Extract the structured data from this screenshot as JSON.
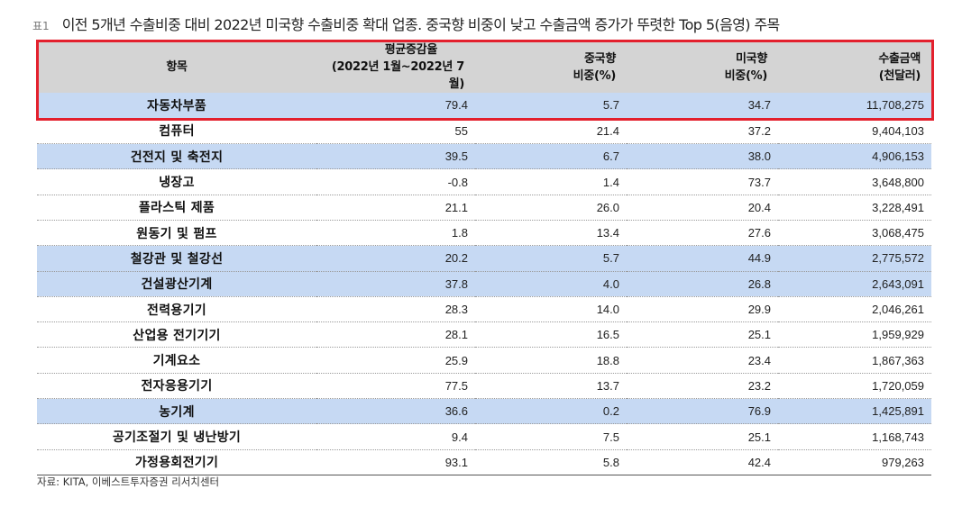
{
  "title": {
    "prefix": "표1",
    "text": "이전 5개년 수출비중 대비 2022년 미국향 수출비중 확대 업종. 중국향 비중이 낮고 수출금액 증가가 뚜렷한 Top 5(음영) 주목"
  },
  "headers": [
    {
      "line1": "항목",
      "line2": ""
    },
    {
      "line1": "평균증감율",
      "line2": "(2022년 1월~2022년 7월)"
    },
    {
      "line1": "중국향",
      "line2": "비중(%)"
    },
    {
      "line1": "미국향",
      "line2": "비중(%)"
    },
    {
      "line1": "수출금액",
      "line2": "(천달러)"
    }
  ],
  "rows": [
    {
      "item": "자동차부품",
      "growth": "79.4",
      "china": "5.7",
      "us": "34.7",
      "amount": "11,708,275",
      "shaded": true
    },
    {
      "item": "컴퓨터",
      "growth": "55",
      "china": "21.4",
      "us": "37.2",
      "amount": "9,404,103",
      "shaded": false
    },
    {
      "item": "건전지 및 축전지",
      "growth": "39.5",
      "china": "6.7",
      "us": "38.0",
      "amount": "4,906,153",
      "shaded": true
    },
    {
      "item": "냉장고",
      "growth": "-0.8",
      "china": "1.4",
      "us": "73.7",
      "amount": "3,648,800",
      "shaded": false
    },
    {
      "item": "플라스틱 제품",
      "growth": "21.1",
      "china": "26.0",
      "us": "20.4",
      "amount": "3,228,491",
      "shaded": false
    },
    {
      "item": "원동기 및 펌프",
      "growth": "1.8",
      "china": "13.4",
      "us": "27.6",
      "amount": "3,068,475",
      "shaded": false
    },
    {
      "item": "철강관 및 철강선",
      "growth": "20.2",
      "china": "5.7",
      "us": "44.9",
      "amount": "2,775,572",
      "shaded": true
    },
    {
      "item": "건설광산기계",
      "growth": "37.8",
      "china": "4.0",
      "us": "26.8",
      "amount": "2,643,091",
      "shaded": true
    },
    {
      "item": "전력용기기",
      "growth": "28.3",
      "china": "14.0",
      "us": "29.9",
      "amount": "2,046,261",
      "shaded": false
    },
    {
      "item": "산업용 전기기기",
      "growth": "28.1",
      "china": "16.5",
      "us": "25.1",
      "amount": "1,959,929",
      "shaded": false
    },
    {
      "item": "기계요소",
      "growth": "25.9",
      "china": "18.8",
      "us": "23.4",
      "amount": "1,867,363",
      "shaded": false
    },
    {
      "item": "전자응용기기",
      "growth": "77.5",
      "china": "13.7",
      "us": "23.2",
      "amount": "1,720,059",
      "shaded": false
    },
    {
      "item": "농기계",
      "growth": "36.6",
      "china": "0.2",
      "us": "76.9",
      "amount": "1,425,891",
      "shaded": true
    },
    {
      "item": "공기조절기 및 냉난방기",
      "growth": "9.4",
      "china": "7.5",
      "us": "25.1",
      "amount": "1,168,743",
      "shaded": false
    },
    {
      "item": "가정용회전기기",
      "growth": "93.1",
      "china": "5.8",
      "us": "42.4",
      "amount": "979,263",
      "shaded": false
    }
  ],
  "source": "자료: KITA, 이베스트투자증권 리서치센터",
  "colors": {
    "header_bg": "#d4d4d4",
    "shade_bg": "#c6d9f3",
    "highlight_border": "#e3202d"
  }
}
